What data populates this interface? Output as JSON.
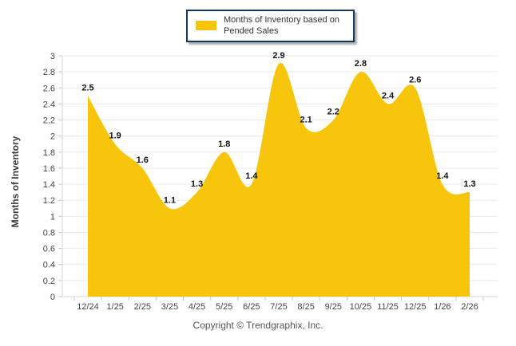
{
  "chart_data": {
    "type": "area",
    "title": "",
    "x_labels": [
      "12/24",
      "1/25",
      "2/25",
      "3/25",
      "4/25",
      "5/25",
      "6/25",
      "7/25",
      "8/25",
      "9/25",
      "10/25",
      "11/25",
      "12/25",
      "1/26",
      "2/26"
    ],
    "series": [
      {
        "name": "Months of Inventory based on Pended Sales",
        "values": [
          2.5,
          1.9,
          1.6,
          1.1,
          1.3,
          1.8,
          1.4,
          2.9,
          2.1,
          2.2,
          2.8,
          2.4,
          2.6,
          1.4,
          1.3
        ]
      }
    ],
    "xlabel": "",
    "ylabel": "Months of Inventory",
    "ylim": [
      0,
      3
    ],
    "ytick_step": 0.2,
    "grid": true,
    "smooth": true,
    "show_data_labels": true,
    "legend": {
      "label": "Months of Inventory based on Pended Sales",
      "position": "top-center"
    }
  },
  "footer": {
    "copyright": "Copyright © Trendgraphix, Inc."
  },
  "colors": {
    "series_fill": "#F7C50C",
    "grid_line": "#E9E9E9",
    "axis_line": "#D6D6D6",
    "tick_mark": "#C9C9C9",
    "tick_label": "#454545",
    "data_label": "#141414",
    "y_axis_title": "#3a3a3a",
    "legend_border": "#17365D",
    "legend_text": "#333333",
    "copyright_text": "#555555"
  }
}
